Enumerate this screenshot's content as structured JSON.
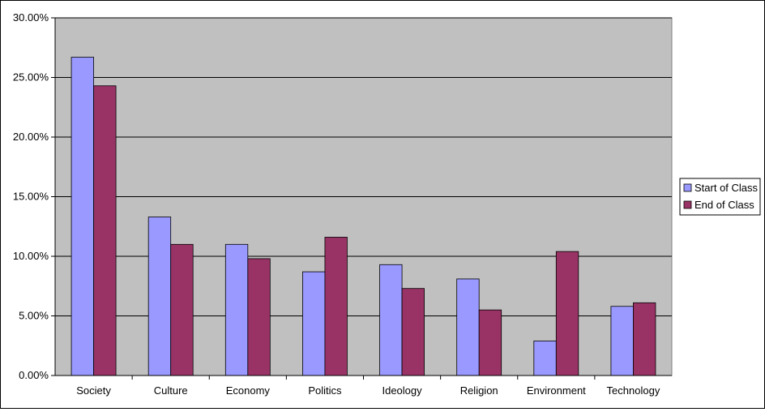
{
  "chart_data": {
    "type": "bar",
    "title": "",
    "xlabel": "",
    "ylabel": "",
    "ylim": [
      0,
      30
    ],
    "yticks": [
      0,
      5,
      10,
      15,
      20,
      25,
      30
    ],
    "ytick_labels": [
      "0.00%",
      "5.00%",
      "10.00%",
      "15.00%",
      "20.00%",
      "25.00%",
      "30.00%"
    ],
    "categories": [
      "Society",
      "Culture",
      "Economy",
      "Politics",
      "Ideology",
      "Religion",
      "Environment",
      "Technology"
    ],
    "series": [
      {
        "name": "Start of Class",
        "color": "#9999ff",
        "values": [
          26.7,
          13.3,
          11.0,
          8.7,
          9.3,
          8.1,
          2.9,
          5.8
        ]
      },
      {
        "name": "End of Class",
        "color": "#993366",
        "values": [
          24.3,
          11.0,
          9.8,
          11.6,
          7.3,
          5.5,
          10.4,
          6.1
        ]
      }
    ],
    "grid": true,
    "plot_background": "#c0c0c0",
    "legend_position": "right"
  }
}
